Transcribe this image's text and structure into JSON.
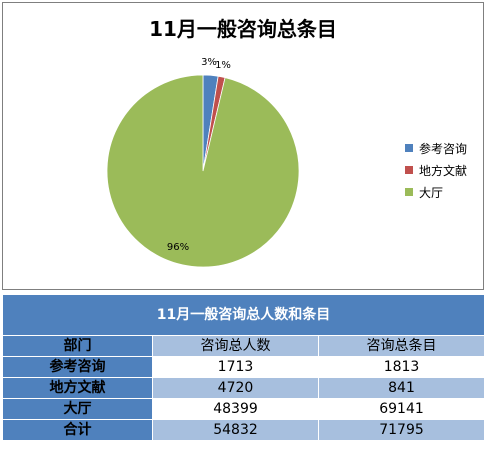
{
  "chart_data": {
    "type": "pie",
    "title": "11月一般咨询总条目",
    "categories": [
      "参考咨询",
      "地方文献",
      "大厅"
    ],
    "values": [
      1813,
      841,
      69141
    ],
    "data_labels": [
      "3%",
      "1%",
      "96%"
    ],
    "legend_position": "right",
    "colors": [
      "#4f81bd",
      "#c0504d",
      "#9bbb59"
    ]
  },
  "table": {
    "title": "11月一般咨询总人数和条目",
    "headers": [
      "部门",
      "咨询总人数",
      "咨询总条目"
    ],
    "rows": [
      [
        "参考咨询",
        "1713",
        "1813"
      ],
      [
        "地方文献",
        "4720",
        "841"
      ],
      [
        "大厅",
        "48399",
        "69141"
      ],
      [
        "合计",
        "54832",
        "71795"
      ]
    ]
  }
}
